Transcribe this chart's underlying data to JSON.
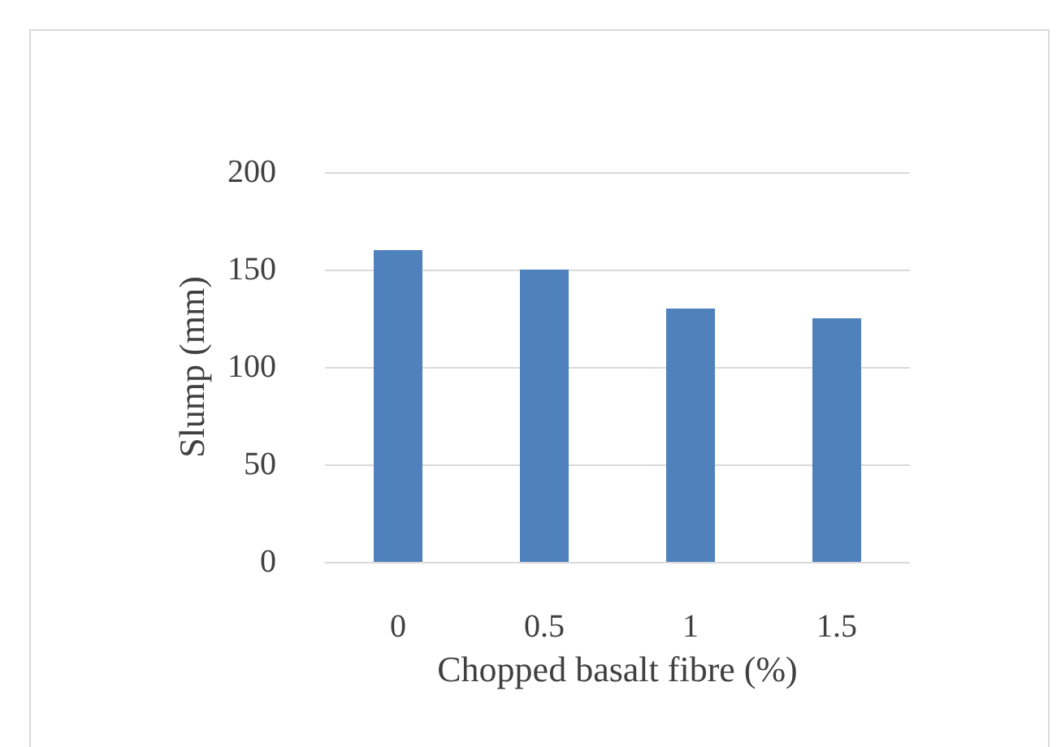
{
  "chart_data": {
    "type": "bar",
    "xlabel": "Chopped basalt fibre (%)",
    "ylabel": "Slump (mm)",
    "categories": [
      "0",
      "0.5",
      "1",
      "1.5"
    ],
    "values": [
      160,
      150,
      130,
      125
    ],
    "color": "#4f81bd",
    "ylim": [
      0,
      200
    ],
    "yticks": [
      0,
      50,
      100,
      150,
      200
    ],
    "grid": "y"
  }
}
